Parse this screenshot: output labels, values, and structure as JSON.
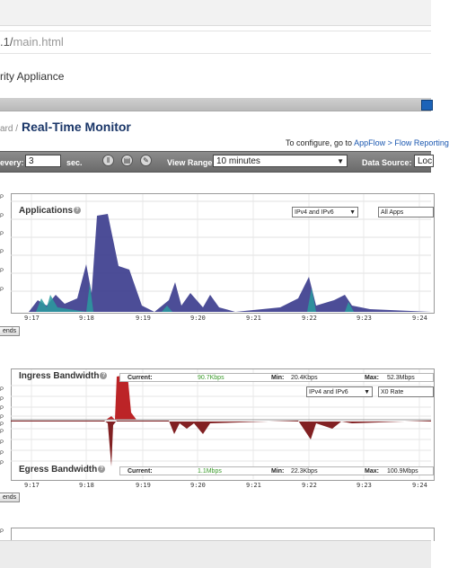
{
  "browser": {
    "url_prefix": ".1/",
    "url_path": "main.html"
  },
  "header": {
    "appliance_text": "rity Appliance",
    "breadcrumb": "ard /",
    "page_title": "Real-Time Monitor"
  },
  "configure": {
    "prefix": "To configure, go to ",
    "link": "AppFlow > Flow Reporting"
  },
  "toolbar": {
    "refresh_label": "every:",
    "refresh_value": "3",
    "refresh_unit": "sec.",
    "view_range_label": "View Range:",
    "view_range_value": "10 minutes",
    "data_source_label": "Data Source:",
    "data_source_value": "Loc",
    "icons": [
      "pause-icon",
      "print-icon",
      "settings-icon"
    ]
  },
  "applications": {
    "title": "Applications",
    "ip_select": "IPv4 and IPv6",
    "apps_select": "All Apps",
    "legend_button": "ends"
  },
  "bandwidth": {
    "ingress_title": "Ingress Bandwidth",
    "egress_title": "Egress Bandwidth",
    "ip_select": "IPv4 and IPv6",
    "rate_select": "X0 Rate",
    "legend_button": "ends",
    "ingress_stats": {
      "current_label": "Current:",
      "current_value": "90.7Kbps",
      "min_label": "Min:",
      "min_value": "20.4Kbps",
      "max_label": "Max:",
      "max_value": "52.3Mbps"
    },
    "egress_stats": {
      "current_label": "Current:",
      "current_value": "1.1Mbps",
      "min_label": "Min:",
      "min_value": "22.3Kbps",
      "max_label": "Max:",
      "max_value": "100.9Mbps"
    }
  },
  "x_ticks": [
    "9:17",
    "9:18",
    "9:19",
    "9:20",
    "9:21",
    "9:22",
    "9:23",
    "9:24"
  ],
  "y_tick_suffix": [
    "P",
    "P",
    "P",
    "P",
    "P",
    "P"
  ],
  "colors": {
    "apps_fill": "#3d3e8e",
    "apps_teal": "#2a9b9e",
    "ingress": "#b8181b",
    "egress": "#7a1416",
    "link": "#1a57b0"
  }
}
